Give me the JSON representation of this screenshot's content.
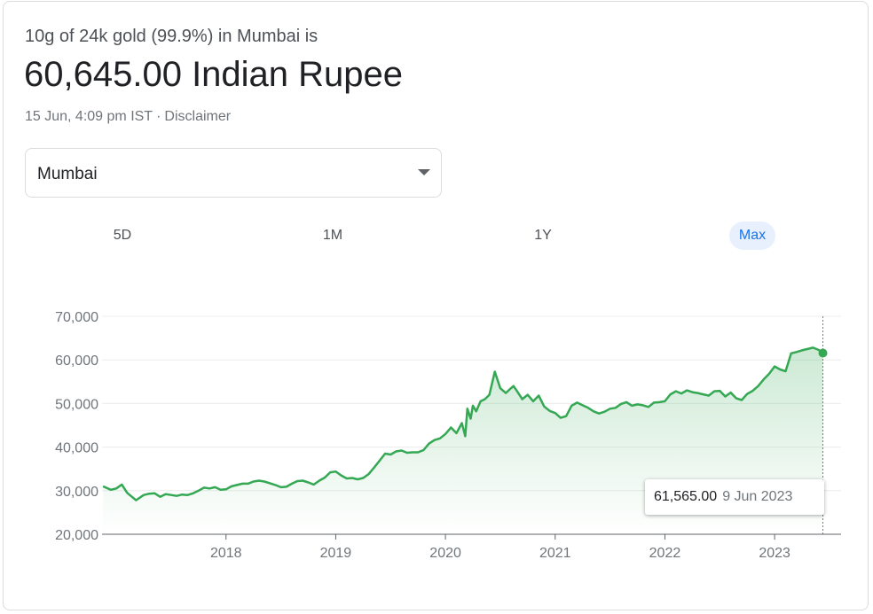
{
  "header": {
    "subtitle": "10g of 24k gold (99.9%) in Mumbai is",
    "price": "60,645.00 Indian Rupee",
    "timestamp": "15 Jun, 4:09 pm IST",
    "separator": "·",
    "disclaimer": "Disclaimer"
  },
  "city_select": {
    "value": "Mumbai"
  },
  "tabs": [
    {
      "label": "5D",
      "active": false
    },
    {
      "label": "1M",
      "active": false
    },
    {
      "label": "1Y",
      "active": false
    },
    {
      "label": "Max",
      "active": true
    }
  ],
  "tooltip": {
    "value": "61,565.00",
    "date": "9 Jun 2023"
  },
  "chart_data": {
    "type": "area",
    "title": "",
    "xlabel": "",
    "ylabel": "",
    "ylim": [
      20000,
      70000
    ],
    "yticks": [
      20000,
      30000,
      40000,
      50000,
      60000,
      70000
    ],
    "ytick_labels": [
      "20,000",
      "30,000",
      "40,000",
      "50,000",
      "60,000",
      "70,000"
    ],
    "xticks": [
      2018,
      2019,
      2020,
      2021,
      2022,
      2023
    ],
    "xtick_labels": [
      "2018",
      "2019",
      "2020",
      "2021",
      "2022",
      "2023"
    ],
    "xlim": [
      2016.87,
      2023.46
    ],
    "grid": true,
    "line_color": "#34a853",
    "series": [
      {
        "x": [
          2016.88,
          2016.95,
          2017.0,
          2017.05,
          2017.1,
          2017.18,
          2017.25,
          2017.3,
          2017.35,
          2017.4,
          2017.45,
          2017.5,
          2017.55,
          2017.6,
          2017.65,
          2017.7,
          2017.75,
          2017.8,
          2017.85,
          2017.9,
          2017.95,
          2018.0,
          2018.05,
          2018.1,
          2018.15,
          2018.2,
          2018.25,
          2018.3,
          2018.35,
          2018.4,
          2018.45,
          2018.5,
          2018.55,
          2018.6,
          2018.65,
          2018.7,
          2018.75,
          2018.8,
          2018.85,
          2018.9,
          2018.95,
          2019.0,
          2019.05,
          2019.1,
          2019.15,
          2019.2,
          2019.25,
          2019.3,
          2019.35,
          2019.4,
          2019.45,
          2019.5,
          2019.55,
          2019.6,
          2019.65,
          2019.7,
          2019.75,
          2019.8,
          2019.85,
          2019.9,
          2019.95,
          2020.0,
          2020.05,
          2020.1,
          2020.15,
          2020.18,
          2020.2,
          2020.23,
          2020.25,
          2020.28,
          2020.32,
          2020.36,
          2020.4,
          2020.45,
          2020.5,
          2020.55,
          2020.58,
          2020.62,
          2020.65,
          2020.7,
          2020.75,
          2020.8,
          2020.85,
          2020.9,
          2020.95,
          2021.0,
          2021.05,
          2021.1,
          2021.15,
          2021.2,
          2021.25,
          2021.3,
          2021.35,
          2021.4,
          2021.45,
          2021.5,
          2021.55,
          2021.6,
          2021.65,
          2021.7,
          2021.75,
          2021.8,
          2021.85,
          2021.9,
          2021.95,
          2022.0,
          2022.05,
          2022.1,
          2022.15,
          2022.2,
          2022.25,
          2022.3,
          2022.35,
          2022.4,
          2022.45,
          2022.5,
          2022.55,
          2022.6,
          2022.65,
          2022.7,
          2022.75,
          2022.8,
          2022.85,
          2022.9,
          2022.95,
          2023.0,
          2023.05,
          2023.1,
          2023.15,
          2023.2,
          2023.25,
          2023.3,
          2023.35,
          2023.4,
          2023.44
        ],
        "y": [
          31000,
          30200,
          30500,
          31400,
          29500,
          27800,
          29000,
          29300,
          29400,
          28600,
          29200,
          29000,
          28800,
          29100,
          29000,
          29400,
          30000,
          30700,
          30500,
          30800,
          30200,
          30300,
          31000,
          31300,
          31600,
          31600,
          32100,
          32300,
          32100,
          31700,
          31300,
          30800,
          30900,
          31600,
          32200,
          32300,
          31900,
          31400,
          32300,
          33000,
          34200,
          34400,
          33500,
          32800,
          32900,
          32600,
          32900,
          33800,
          35300,
          36900,
          38500,
          38300,
          39000,
          39200,
          38700,
          38800,
          38800,
          39300,
          40800,
          41600,
          42000,
          43000,
          44500,
          43200,
          45500,
          42500,
          48800,
          46500,
          49500,
          48200,
          50500,
          51000,
          52000,
          57300,
          53500,
          52400,
          53100,
          54000,
          52900,
          51000,
          52000,
          50500,
          51800,
          49300,
          48300,
          47800,
          46700,
          47100,
          49500,
          50200,
          49600,
          49000,
          48200,
          47700,
          48100,
          48800,
          49000,
          49900,
          50300,
          49500,
          49800,
          49600,
          49200,
          50200,
          50300,
          50500,
          52100,
          52800,
          52300,
          53000,
          52600,
          52400,
          52100,
          51800,
          52800,
          52900,
          51600,
          52500,
          51200,
          50800,
          52200,
          52900,
          54000,
          55500,
          56800,
          58500,
          57800,
          57400,
          61500,
          61800,
          62200,
          62500,
          62800,
          62300,
          61565
        ]
      }
    ]
  }
}
